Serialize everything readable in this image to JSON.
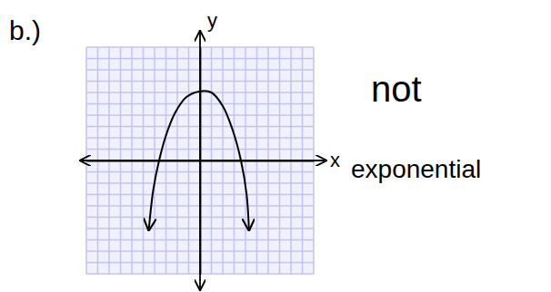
{
  "chart_data": {
    "type": "line",
    "title": "b.)",
    "x_label": "x",
    "y_label": "y",
    "annotations": [
      "not",
      "exponential"
    ],
    "x": [
      -4.5,
      -4.1,
      -3.6,
      -3,
      -2.2,
      -1.2,
      0,
      1,
      2,
      2.9,
      3.6,
      4.1,
      4.3
    ],
    "values": [
      -6,
      -2.5,
      0,
      2.2,
      4.2,
      5.6,
      6.1,
      6,
      4.8,
      2.6,
      0,
      -3,
      -6
    ],
    "color": "#000000",
    "xlim": [
      -10,
      10
    ],
    "ylim": [
      -10,
      10
    ],
    "xticks": [
      -10,
      -9,
      -8,
      -7,
      -6,
      -5,
      -4,
      -3,
      -2,
      -1,
      0,
      1,
      2,
      3,
      4,
      5,
      6,
      7,
      8,
      9,
      10
    ],
    "yticks": [
      -10,
      -9,
      -8,
      -7,
      -6,
      -5,
      -4,
      -3,
      -2,
      -1,
      0,
      1,
      2,
      3,
      4,
      5,
      6,
      7,
      8,
      9,
      10
    ],
    "grid": true,
    "tick_labels": false
  }
}
